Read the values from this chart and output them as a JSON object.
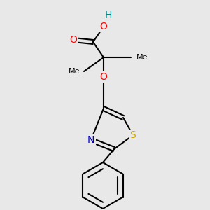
{
  "bg": "#e8e8e8",
  "bond_color": "#000000",
  "bond_lw": 1.5,
  "figsize": [
    3.0,
    3.0
  ],
  "dpi": 100,
  "colors": {
    "O": "#ff0000",
    "H": "#008080",
    "N": "#0000cd",
    "S": "#ccaa00",
    "C": "#000000"
  }
}
